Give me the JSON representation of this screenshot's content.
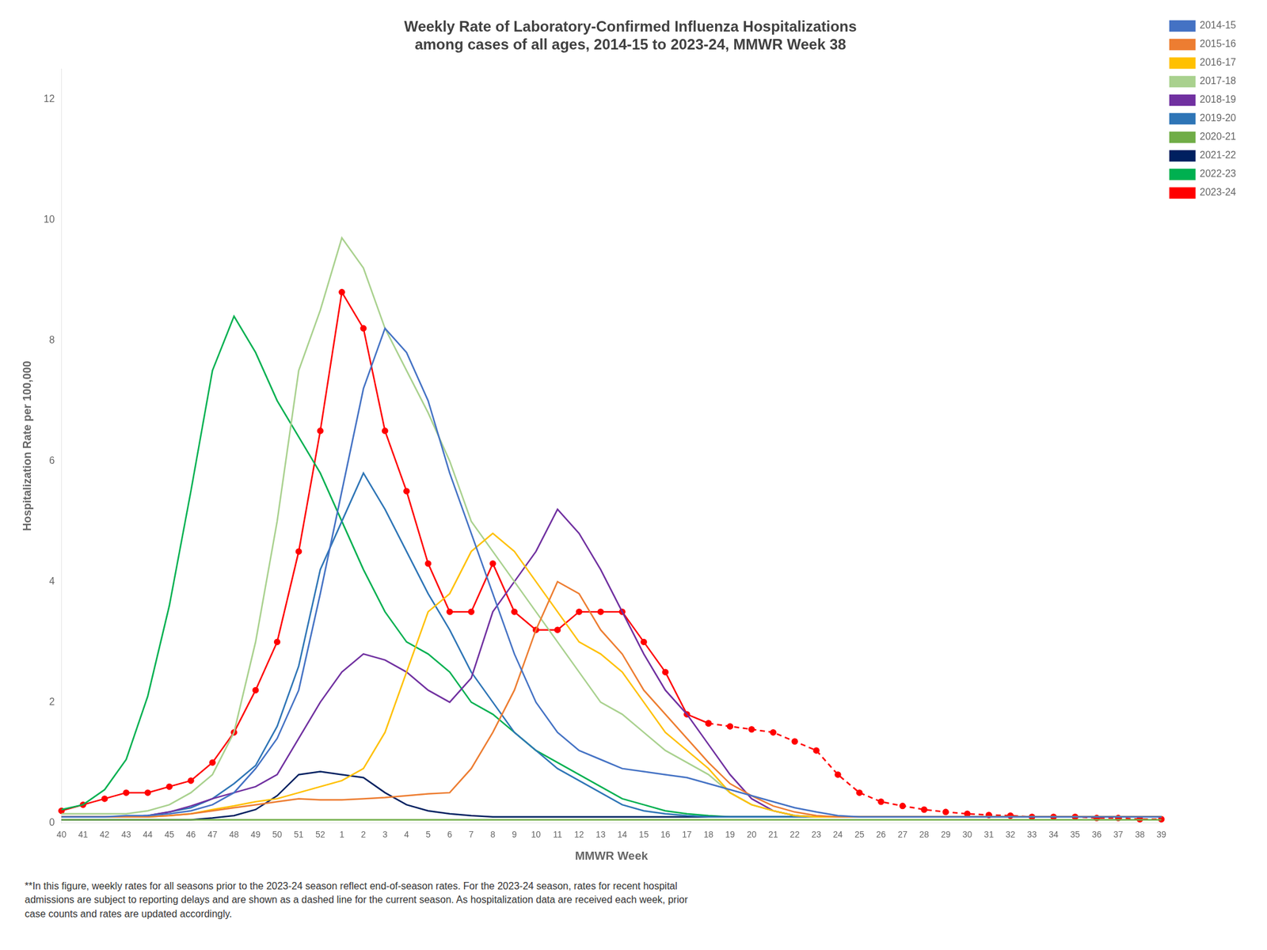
{
  "chart_data": {
    "type": "line",
    "title": "Weekly Rate of Laboratory-Confirmed Influenza Hospitalizations",
    "subtitle": "among cases of all ages, 2014-15 to 2023-24, MMWR Week 38",
    "xlabel": "MMWR Week",
    "ylabel": "Hospitalization Rate per 100,000",
    "footnote": "**In this figure, weekly rates for all seasons prior to the 2023-24 season reflect end-of-season rates. For the 2023-24 season, rates for recent hospital\nadmissions are subject to reporting delays and are shown as a dashed line for the current season. As hospitalization data are received each week, prior\ncase counts and rates are updated accordingly.",
    "categories": [
      "40",
      "41",
      "42",
      "43",
      "44",
      "45",
      "46",
      "47",
      "48",
      "49",
      "50",
      "51",
      "52",
      "1",
      "2",
      "3",
      "4",
      "5",
      "6",
      "7",
      "8",
      "9",
      "10",
      "11",
      "12",
      "13",
      "14",
      "15",
      "16",
      "17",
      "18",
      "19",
      "20",
      "21",
      "22",
      "23",
      "24",
      "25",
      "26",
      "27",
      "28",
      "29",
      "30",
      "31",
      "32",
      "33",
      "34",
      "35",
      "36",
      "37",
      "38",
      "39"
    ],
    "ylim": [
      0,
      12.5
    ],
    "yticks": [
      0,
      2,
      4,
      6,
      8,
      10,
      12
    ],
    "grid": false,
    "legend": "right",
    "series": [
      {
        "name": "2014-15",
        "color": "#4472C4",
        "values": [
          0.1,
          0.1,
          0.1,
          0.12,
          0.12,
          0.15,
          0.2,
          0.3,
          0.5,
          0.9,
          1.4,
          2.2,
          3.8,
          5.5,
          7.2,
          8.2,
          7.8,
          7.0,
          5.8,
          4.8,
          3.8,
          2.8,
          2.0,
          1.5,
          1.2,
          1.05,
          0.9,
          0.85,
          0.8,
          0.75,
          0.65,
          0.55,
          0.45,
          0.35,
          0.25,
          0.18,
          0.12,
          0.1,
          0.1,
          0.1,
          0.1,
          0.1,
          0.1,
          0.1,
          0.1,
          0.1,
          0.1,
          0.1,
          0.1,
          0.1,
          0.1,
          0.1
        ]
      },
      {
        "name": "2015-16",
        "color": "#ED7D31",
        "values": [
          0.1,
          0.1,
          0.1,
          0.1,
          0.1,
          0.12,
          0.15,
          0.2,
          0.25,
          0.3,
          0.35,
          0.4,
          0.38,
          0.38,
          0.4,
          0.42,
          0.45,
          0.48,
          0.5,
          0.9,
          1.5,
          2.2,
          3.2,
          4.0,
          3.8,
          3.2,
          2.8,
          2.2,
          1.8,
          1.4,
          1.0,
          0.65,
          0.45,
          0.28,
          0.18,
          0.12,
          0.1,
          0.1,
          0.1,
          0.1,
          0.1,
          0.1,
          0.1,
          0.1,
          0.1,
          0.1,
          0.1,
          0.1,
          0.1,
          0.1,
          0.1,
          0.1
        ]
      },
      {
        "name": "2016-17",
        "color": "#FFC000",
        "values": [
          0.1,
          0.1,
          0.1,
          0.1,
          0.1,
          0.12,
          0.15,
          0.22,
          0.28,
          0.35,
          0.4,
          0.5,
          0.6,
          0.7,
          0.9,
          1.5,
          2.5,
          3.5,
          3.8,
          4.5,
          4.8,
          4.5,
          4.0,
          3.5,
          3.0,
          2.8,
          2.5,
          2.0,
          1.5,
          1.2,
          0.9,
          0.5,
          0.3,
          0.2,
          0.12,
          0.1,
          0.1,
          0.1,
          0.1,
          0.1,
          0.1,
          0.1,
          0.1,
          0.1,
          0.1,
          0.1,
          0.1,
          0.1,
          0.1,
          0.1,
          0.1,
          0.1
        ]
      },
      {
        "name": "2017-18",
        "color": "#A9D18E",
        "values": [
          0.15,
          0.15,
          0.15,
          0.15,
          0.2,
          0.3,
          0.5,
          0.8,
          1.5,
          3.0,
          5.0,
          7.5,
          8.5,
          9.7,
          9.2,
          8.2,
          7.5,
          6.8,
          6.0,
          5.0,
          4.5,
          4.0,
          3.5,
          3.0,
          2.5,
          2.0,
          1.8,
          1.5,
          1.2,
          1.0,
          0.8,
          0.5,
          0.3,
          0.2,
          0.12,
          0.1,
          0.1,
          0.1,
          0.1,
          0.1,
          0.1,
          0.1,
          0.1,
          0.1,
          0.1,
          0.1,
          0.1,
          0.1,
          0.1,
          0.1,
          0.1,
          0.1
        ]
      },
      {
        "name": "2018-19",
        "color": "#7030A0",
        "values": [
          0.1,
          0.1,
          0.1,
          0.1,
          0.12,
          0.18,
          0.28,
          0.4,
          0.5,
          0.6,
          0.8,
          1.4,
          2.0,
          2.5,
          2.8,
          2.7,
          2.5,
          2.2,
          2.0,
          2.4,
          3.5,
          4.0,
          4.5,
          5.2,
          4.8,
          4.2,
          3.5,
          2.8,
          2.2,
          1.8,
          1.3,
          0.8,
          0.4,
          0.2,
          0.12,
          0.1,
          0.1,
          0.1,
          0.1,
          0.1,
          0.1,
          0.1,
          0.1,
          0.1,
          0.1,
          0.1,
          0.1,
          0.1,
          0.1,
          0.1,
          0.1,
          0.1
        ]
      },
      {
        "name": "2019-20",
        "color": "#2E75B6",
        "values": [
          0.1,
          0.1,
          0.1,
          0.1,
          0.12,
          0.18,
          0.25,
          0.4,
          0.65,
          0.95,
          1.6,
          2.6,
          4.2,
          5.0,
          5.8,
          5.2,
          4.5,
          3.8,
          3.2,
          2.5,
          2.0,
          1.5,
          1.2,
          0.9,
          0.7,
          0.5,
          0.3,
          0.2,
          0.15,
          0.12,
          0.1,
          0.1,
          0.1,
          0.1,
          0.1,
          0.1,
          0.1,
          0.1,
          0.1,
          0.1,
          0.1,
          0.1,
          0.1,
          0.1,
          0.1,
          0.1,
          0.1,
          0.1,
          0.1,
          0.1,
          0.1,
          0.1
        ]
      },
      {
        "name": "2020-21",
        "color": "#70AD47",
        "values": [
          0.05,
          0.05,
          0.05,
          0.05,
          0.05,
          0.05,
          0.05,
          0.05,
          0.05,
          0.05,
          0.05,
          0.05,
          0.05,
          0.05,
          0.05,
          0.05,
          0.05,
          0.05,
          0.05,
          0.05,
          0.05,
          0.05,
          0.05,
          0.05,
          0.05,
          0.05,
          0.05,
          0.05,
          0.05,
          0.05,
          0.05,
          0.05,
          0.05,
          0.05,
          0.05,
          0.05,
          0.05,
          0.05,
          0.05,
          0.05,
          0.05,
          0.05,
          0.05,
          0.05,
          0.05,
          0.05,
          0.05,
          0.05,
          0.05,
          0.05,
          0.05,
          0.05
        ]
      },
      {
        "name": "2021-22",
        "color": "#002060",
        "values": [
          0.05,
          0.05,
          0.05,
          0.05,
          0.05,
          0.05,
          0.05,
          0.08,
          0.12,
          0.22,
          0.45,
          0.8,
          0.85,
          0.8,
          0.75,
          0.5,
          0.3,
          0.2,
          0.15,
          0.12,
          0.1,
          0.1,
          0.1,
          0.1,
          0.1,
          0.1,
          0.1,
          0.1,
          0.1,
          0.1,
          0.1,
          0.1,
          0.1,
          0.1,
          0.1,
          0.1,
          0.1,
          0.1,
          0.1,
          0.1,
          0.1,
          0.1,
          0.1,
          0.1,
          0.1,
          0.1,
          0.1,
          0.1,
          0.1,
          0.1,
          0.1,
          0.1
        ]
      },
      {
        "name": "2022-23",
        "color": "#00B050",
        "values": [
          0.22,
          0.3,
          0.55,
          1.05,
          2.1,
          3.6,
          5.5,
          7.5,
          8.4,
          7.8,
          7.0,
          6.4,
          5.8,
          5.0,
          4.2,
          3.5,
          3.0,
          2.8,
          2.5,
          2.0,
          1.8,
          1.5,
          1.2,
          1.0,
          0.8,
          0.6,
          0.4,
          0.3,
          0.2,
          0.15,
          0.12,
          0.1,
          0.1,
          0.1,
          0.1,
          0.1,
          0.1,
          0.1,
          0.1,
          0.1,
          0.1,
          0.1,
          0.1,
          0.1,
          0.1,
          0.1,
          0.1,
          0.1,
          0.1,
          0.1,
          0.1,
          0.1
        ]
      },
      {
        "name": "2023-24",
        "color": "#FF0000",
        "marker": "o",
        "line_style": "solid",
        "values": [
          0.2,
          0.3,
          0.4,
          0.5,
          0.5,
          0.6,
          0.7,
          1.0,
          1.5,
          2.2,
          3.0,
          4.5,
          6.5,
          8.8,
          8.2,
          6.5,
          5.5,
          4.3,
          3.5,
          3.5,
          4.3,
          3.5,
          3.2,
          3.2,
          3.5,
          3.5,
          3.5,
          3.0,
          2.5,
          1.8,
          1.65,
          null,
          null,
          null,
          null,
          null,
          null,
          null,
          null,
          null,
          null,
          null,
          null,
          null,
          null,
          null,
          null,
          null,
          null,
          null,
          null,
          null
        ]
      },
      {
        "color": "#FF0000",
        "marker": "o",
        "line_style": "dashed",
        "values": [
          null,
          null,
          null,
          null,
          null,
          null,
          null,
          null,
          null,
          null,
          null,
          null,
          null,
          null,
          null,
          null,
          null,
          null,
          null,
          null,
          null,
          null,
          null,
          null,
          null,
          null,
          null,
          null,
          null,
          null,
          1.65,
          1.6,
          1.55,
          1.5,
          1.35,
          1.2,
          0.8,
          0.5,
          0.35,
          0.28,
          0.22,
          0.18,
          0.15,
          0.13,
          0.12,
          0.1,
          0.1,
          0.1,
          0.08,
          0.08,
          0.06,
          0.06
        ]
      }
    ]
  }
}
